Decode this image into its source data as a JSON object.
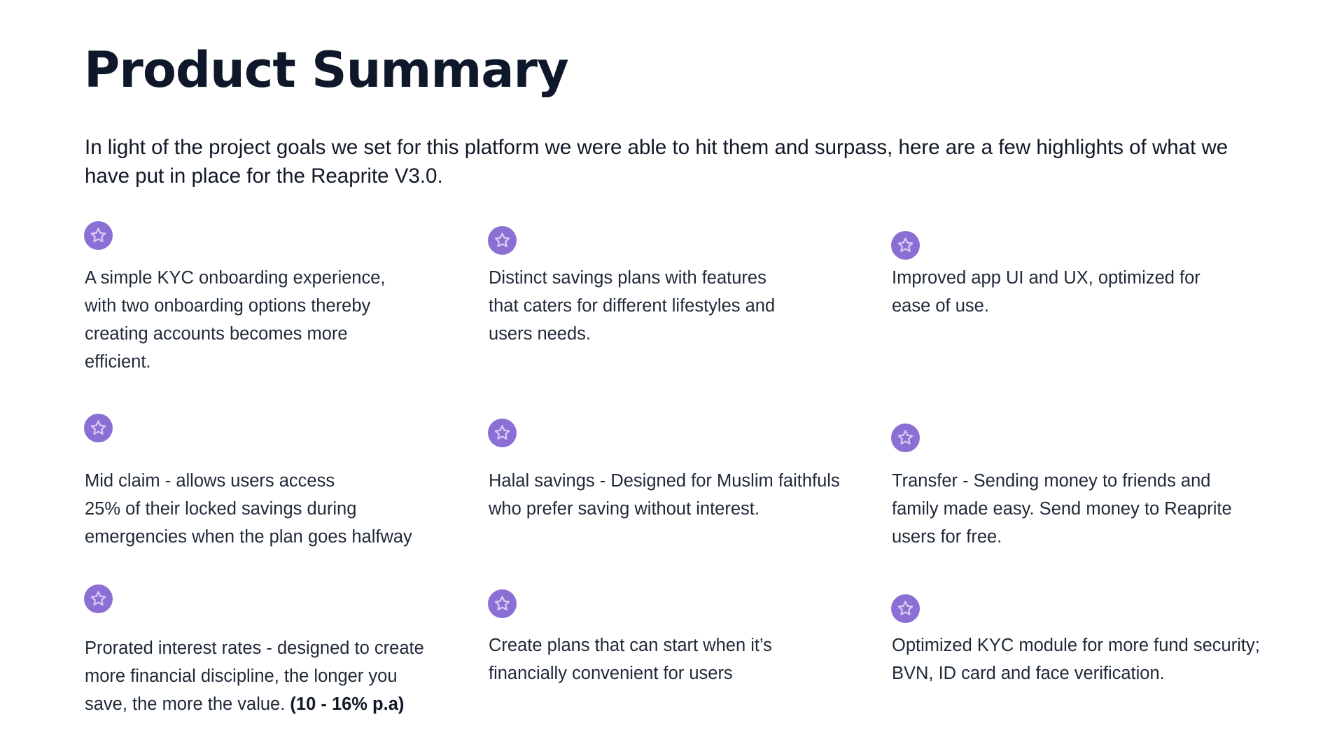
{
  "header": {
    "title": "Product Summary",
    "intro": "In light of the project goals we set for this platform we were able to hit them and surpass, here are a few highlights of what we have put in place for the Reaprite V3.0."
  },
  "accent_color": "#8b6fd4",
  "icon": "star-icon",
  "highlights": [
    {
      "text": "A simple KYC onboarding experience,\n with two onboarding options thereby\ncreating accounts becomes more\nefficient."
    },
    {
      "text": "Distinct savings plans with features\nthat caters for different lifestyles and\nusers needs."
    },
    {
      "text": "Improved app UI and UX, optimized for\nease of use."
    },
    {
      "text": "Mid claim - allows users access\n25% of their locked savings during\nemergencies when the plan goes halfway"
    },
    {
      "text": "Halal savings - Designed for Muslim faithfuls\nwho prefer saving without interest."
    },
    {
      "text": "Transfer - Sending money to friends and\nfamily made easy. Send money to Reaprite\nusers for free."
    },
    {
      "text": "Prorated interest rates -  designed to create\nmore financial discipline, the longer you\nsave, the more the value. ",
      "emphasis": "(10 - 16% p.a)"
    },
    {
      "text": "Create plans that can start when it’s\nfinancially convenient for users"
    },
    {
      "text": "Optimized KYC module for more fund security;\nBVN, ID card and face verification."
    }
  ]
}
